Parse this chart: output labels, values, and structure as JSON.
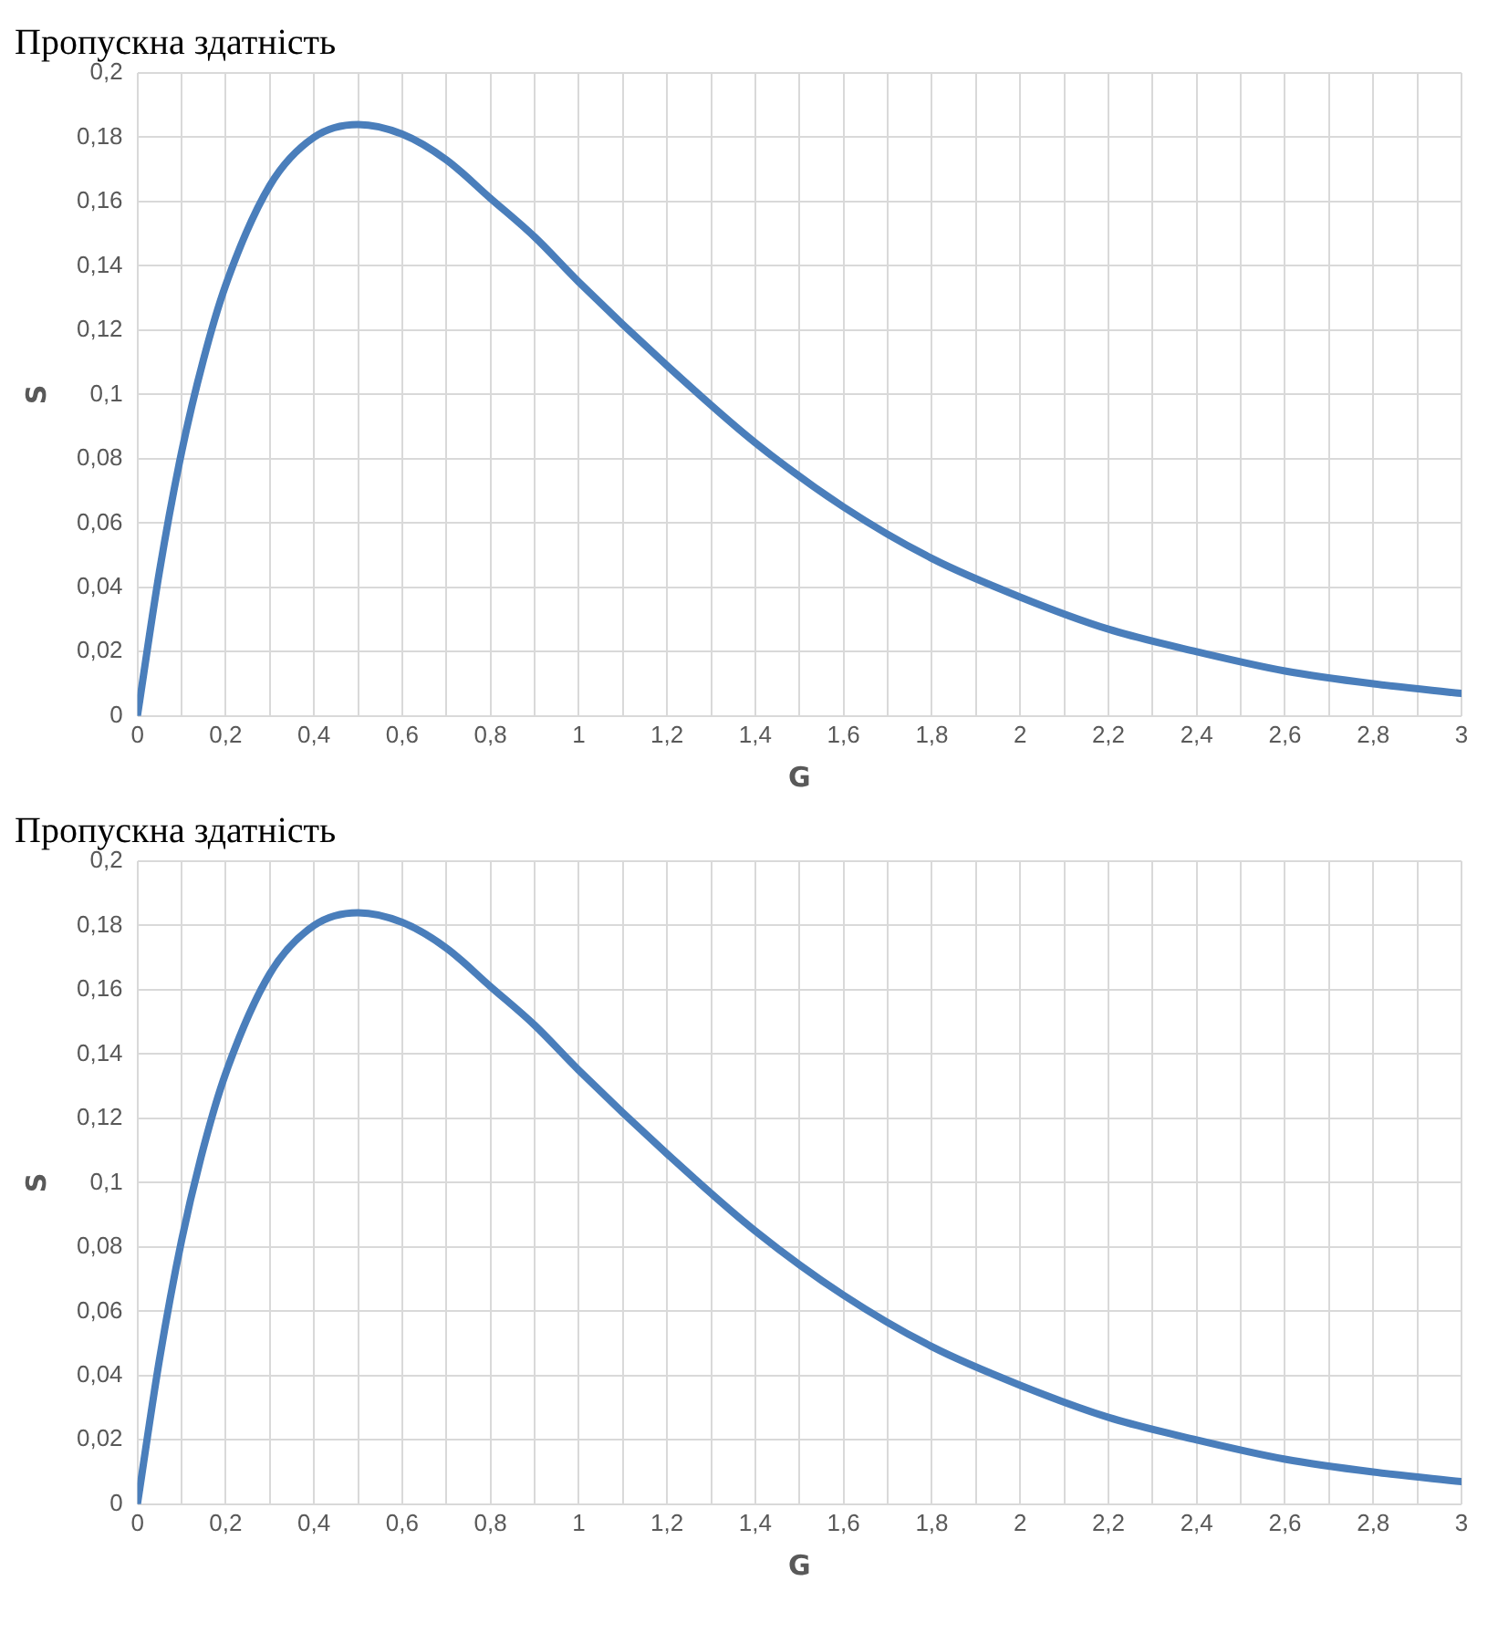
{
  "chart_data": [
    {
      "type": "line",
      "title": "Пропускна здатність",
      "xlabel": "G",
      "ylabel": "S",
      "grid": true,
      "legend": false,
      "marker": "none",
      "line_style": "solid",
      "x": [
        0,
        0.05,
        0.1,
        0.15,
        0.2,
        0.3,
        0.4,
        0.5,
        0.6,
        0.7,
        0.8,
        0.9,
        1,
        1.2,
        1.4,
        1.6,
        1.8,
        2,
        2.2,
        2.4,
        2.6,
        2.8,
        3
      ],
      "series": [
        {
          "color": "#4a7ebb",
          "values": [
            0,
            0.045,
            0.082,
            0.111,
            0.134,
            0.165,
            0.18,
            0.184,
            0.181,
            0.173,
            0.161,
            0.149,
            0.135,
            0.109,
            0.085,
            0.065,
            0.049,
            0.037,
            0.027,
            0.02,
            0.014,
            0.01,
            0.007
          ]
        }
      ],
      "xlim": [
        0,
        3
      ],
      "xticks": [
        0,
        {
          "value": 0.1,
          "label": null
        },
        {
          "value": 0.2,
          "label": "0,2"
        },
        {
          "value": 0.3,
          "label": null
        },
        {
          "value": 0.4,
          "label": "0,4"
        },
        {
          "value": 0.5,
          "label": null
        },
        {
          "value": 0.6,
          "label": "0,6"
        },
        {
          "value": 0.7,
          "label": null
        },
        {
          "value": 0.8,
          "label": "0,8"
        },
        {
          "value": 0.9,
          "label": null
        },
        1,
        {
          "value": 1.1,
          "label": null
        },
        {
          "value": 1.2,
          "label": "1,2"
        },
        {
          "value": 1.3,
          "label": null
        },
        {
          "value": 1.4,
          "label": "1,4"
        },
        {
          "value": 1.5,
          "label": null
        },
        {
          "value": 1.6,
          "label": "1,6"
        },
        {
          "value": 1.7,
          "label": null
        },
        {
          "value": 1.8,
          "label": "1,8"
        },
        {
          "value": 1.9,
          "label": null
        },
        2,
        {
          "value": 2.1,
          "label": null
        },
        {
          "value": 2.2,
          "label": "2,2"
        },
        {
          "value": 2.3,
          "label": null
        },
        {
          "value": 2.4,
          "label": "2,4"
        },
        {
          "value": 2.5,
          "label": null
        },
        {
          "value": 2.6,
          "label": "2,6"
        },
        {
          "value": 2.7,
          "label": null
        },
        {
          "value": 2.8,
          "label": "2,8"
        },
        {
          "value": 2.9,
          "label": null
        },
        3
      ],
      "ylim": [
        0,
        0.2
      ],
      "yticks": [
        0,
        {
          "value": 0.02,
          "label": "0,02"
        },
        {
          "value": 0.04,
          "label": "0,04"
        },
        {
          "value": 0.06,
          "label": "0,06"
        },
        {
          "value": 0.08,
          "label": "0,08"
        },
        {
          "value": 0.1,
          "label": "0,1"
        },
        {
          "value": 0.12,
          "label": "0,12"
        },
        {
          "value": 0.14,
          "label": "0,14"
        },
        {
          "value": 0.16,
          "label": "0,16"
        },
        {
          "value": 0.18,
          "label": "0,18"
        },
        {
          "value": 0.2,
          "label": "0,2"
        }
      ]
    },
    {
      "type": "line",
      "title": "Пропускна здатність",
      "xlabel": "G",
      "ylabel": "S",
      "grid": true,
      "legend": false,
      "marker": "none",
      "line_style": "solid",
      "x": [
        0,
        0.05,
        0.1,
        0.15,
        0.2,
        0.3,
        0.4,
        0.5,
        0.6,
        0.7,
        0.8,
        0.9,
        1,
        1.2,
        1.4,
        1.6,
        1.8,
        2,
        2.2,
        2.4,
        2.6,
        2.8,
        3
      ],
      "series": [
        {
          "color": "#4a7ebb",
          "values": [
            0,
            0.045,
            0.082,
            0.111,
            0.134,
            0.165,
            0.18,
            0.184,
            0.181,
            0.173,
            0.161,
            0.149,
            0.135,
            0.109,
            0.085,
            0.065,
            0.049,
            0.037,
            0.027,
            0.02,
            0.014,
            0.01,
            0.007
          ]
        }
      ],
      "xlim": [
        0,
        3
      ],
      "xticks": [
        0,
        {
          "value": 0.1,
          "label": null
        },
        {
          "value": 0.2,
          "label": "0,2"
        },
        {
          "value": 0.3,
          "label": null
        },
        {
          "value": 0.4,
          "label": "0,4"
        },
        {
          "value": 0.5,
          "label": null
        },
        {
          "value": 0.6,
          "label": "0,6"
        },
        {
          "value": 0.7,
          "label": null
        },
        {
          "value": 0.8,
          "label": "0,8"
        },
        {
          "value": 0.9,
          "label": null
        },
        1,
        {
          "value": 1.1,
          "label": null
        },
        {
          "value": 1.2,
          "label": "1,2"
        },
        {
          "value": 1.3,
          "label": null
        },
        {
          "value": 1.4,
          "label": "1,4"
        },
        {
          "value": 1.5,
          "label": null
        },
        {
          "value": 1.6,
          "label": "1,6"
        },
        {
          "value": 1.7,
          "label": null
        },
        {
          "value": 1.8,
          "label": "1,8"
        },
        {
          "value": 1.9,
          "label": null
        },
        2,
        {
          "value": 2.1,
          "label": null
        },
        {
          "value": 2.2,
          "label": "2,2"
        },
        {
          "value": 2.3,
          "label": null
        },
        {
          "value": 2.4,
          "label": "2,4"
        },
        {
          "value": 2.5,
          "label": null
        },
        {
          "value": 2.6,
          "label": "2,6"
        },
        {
          "value": 2.7,
          "label": null
        },
        {
          "value": 2.8,
          "label": "2,8"
        },
        {
          "value": 2.9,
          "label": null
        },
        3
      ],
      "ylim": [
        0,
        0.2
      ],
      "yticks": [
        0,
        {
          "value": 0.02,
          "label": "0,02"
        },
        {
          "value": 0.04,
          "label": "0,04"
        },
        {
          "value": 0.06,
          "label": "0,06"
        },
        {
          "value": 0.08,
          "label": "0,08"
        },
        {
          "value": 0.1,
          "label": "0,1"
        },
        {
          "value": 0.12,
          "label": "0,12"
        },
        {
          "value": 0.14,
          "label": "0,14"
        },
        {
          "value": 0.16,
          "label": "0,16"
        },
        {
          "value": 0.18,
          "label": "0,18"
        },
        {
          "value": 0.2,
          "label": "0,2"
        }
      ]
    }
  ]
}
